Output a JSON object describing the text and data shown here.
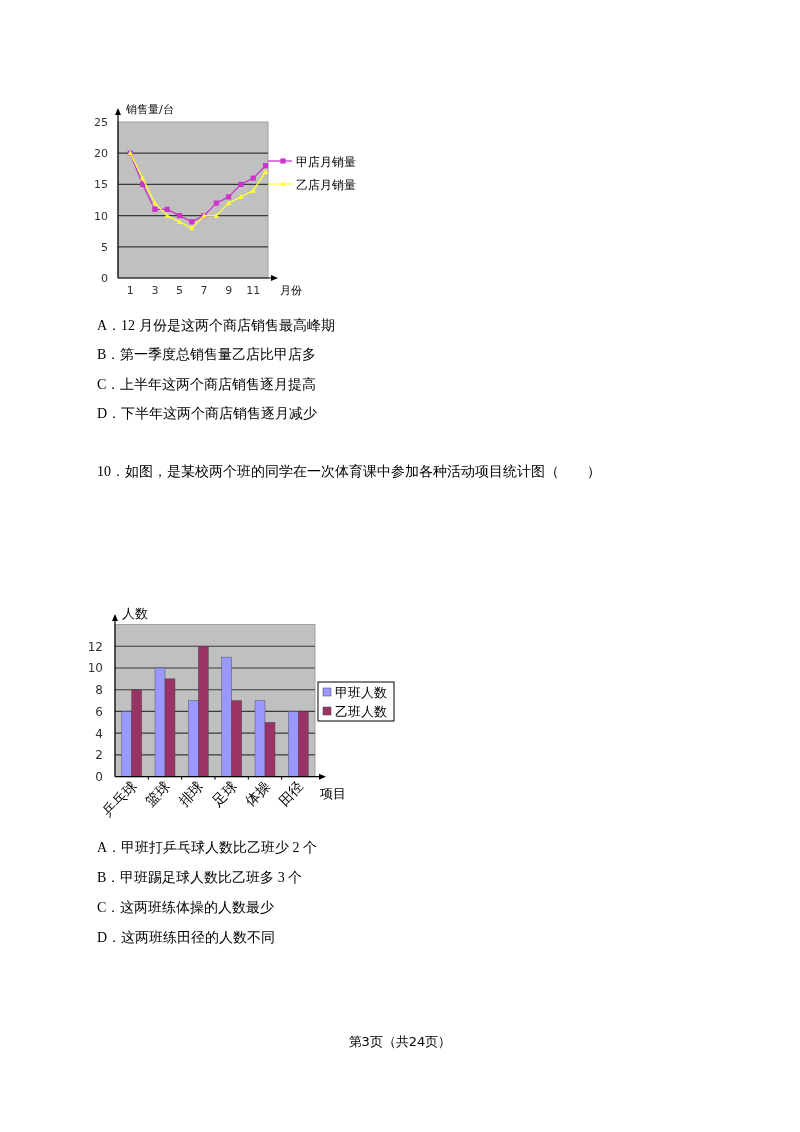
{
  "chart_data": [
    {
      "type": "line",
      "x": [
        1,
        2,
        3,
        4,
        5,
        6,
        7,
        8,
        9,
        10,
        11,
        12
      ],
      "xlim": [
        0,
        12.2
      ],
      "xticks": [
        1,
        3,
        5,
        7,
        9,
        11
      ],
      "ylim": [
        0,
        25
      ],
      "yticks": [
        0,
        5,
        10,
        15,
        20,
        25
      ],
      "xlabel": "月份",
      "ylabel": "销售量/台",
      "grid": "y",
      "legend": "right",
      "series": [
        {
          "name": "甲店月销量",
          "color": "#cc33cc",
          "marker": "square",
          "values": [
            20,
            15,
            11,
            11,
            10,
            9,
            10,
            12,
            13,
            15,
            16,
            18
          ]
        },
        {
          "name": "乙店月销量",
          "color": "#ffff33",
          "marker": "triangle",
          "values": [
            20,
            16,
            12,
            10,
            9,
            8,
            10,
            10,
            12,
            13,
            14,
            17
          ]
        }
      ],
      "annotations": [
        "A．12 月份是这两个商店销售最高峰期",
        "B．第一季度总销售量乙店比甲店多",
        "C．上半年这两个商店销售逐月提高",
        "D．下半年这两个商店销售逐月减少"
      ]
    },
    {
      "type": "bar",
      "title": "10．如图，是某校两个班的同学在一次体育课中参加各种活动项目统计图（　　）",
      "categories": [
        "乒乓球",
        "篮球",
        "排球",
        "足球",
        "体操",
        "田径"
      ],
      "ylim": [
        0,
        14
      ],
      "yticks": [
        0,
        2,
        4,
        6,
        8,
        10,
        12
      ],
      "xlabel": "项目",
      "ylabel": "人数",
      "grid": "y",
      "legend": "right",
      "series": [
        {
          "name": "甲班人数",
          "color": "#9999ff",
          "values": [
            6,
            10,
            7,
            11,
            7,
            6
          ]
        },
        {
          "name": "乙班人数",
          "color": "#993366",
          "values": [
            8,
            9,
            12,
            7,
            5,
            6
          ]
        }
      ],
      "annotations": [
        "A．甲班打乒乓球人数比乙班少 2 个",
        "B．甲班踢足球人数比乙班多 3 个",
        "C．这两班练体操的人数最少",
        "D．这两班练田径的人数不同",
        "第3页（共24页）"
      ]
    }
  ]
}
